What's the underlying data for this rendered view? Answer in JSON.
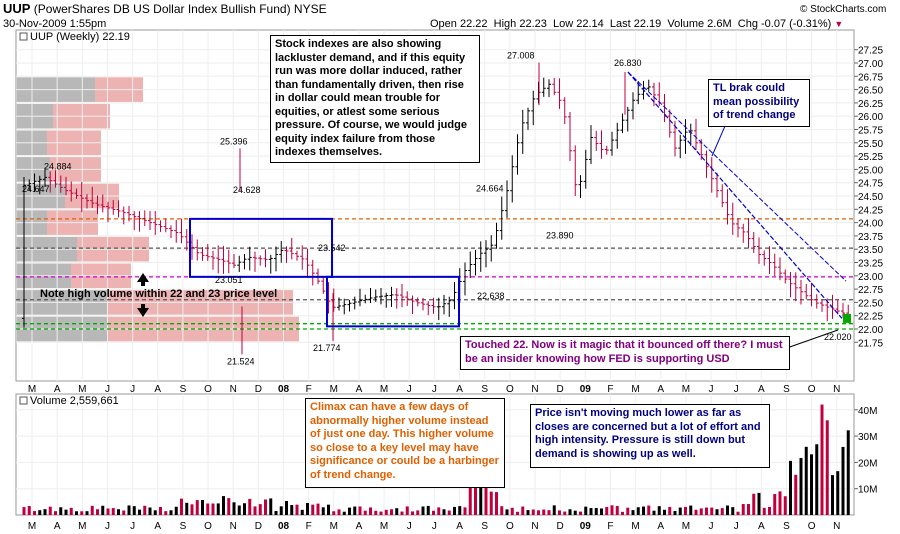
{
  "header": {
    "symbol": "UUP",
    "name": "(PowerShares DB US Dollar Index Bullish Fund)",
    "exchange": "NYSE",
    "date": "30-Nov-2009 1:55pm",
    "open_label": "Open",
    "open": "22.22",
    "high_label": "High",
    "high": "22.23",
    "low_label": "Low",
    "low": "22.14",
    "last_label": "Last",
    "last": "22.19",
    "volume_label": "Volume",
    "volume": "2.6M",
    "chg_label": "Chg",
    "chg": "-0.07 (-0.31%)",
    "chg_icon": "down-triangle-icon",
    "copyright": "© StockCharts.com",
    "colors": {
      "down": "#c0003c",
      "up": "#000000",
      "neg_chg": "#cc0000"
    }
  },
  "price_panel": {
    "legend": "UUP (Weekly) 22.19",
    "legend_icon": "checkbox-icon"
  },
  "volume_panel": {
    "legend": "Volume 2,559,661",
    "legend_icon": "checkbox-icon",
    "y_ticks": [
      "10M",
      "20M",
      "30M",
      "40M"
    ]
  },
  "annotations": {
    "stock_indexes": "Stock indexes are also showing lackluster demand, and if this equity run was more dollar induced, rather than fundamentally driven, then rise in dollar could mean trouble for equities, or atlest some serious pressure.  Of course, we would judge equity index failure from those indexes themselves.",
    "tl_break": "TL brak could mean possibility of trend change",
    "high_volume": "Note high volume within 22 and 23 price level",
    "touched": "Touched 22.  Now is it magic that it bounced off there?  I must be an insider knowing how FED is supporting USD",
    "climax": "Climax can have a few days of abnormally higher volume instead of just one day.  This higher volume so close to a key level may have significance or could be a harbinger of trend change.",
    "price_not_moving": "Price isn't moving much lower as far as closes are concerned but a lot of effort and high intensity.  Pressure is still down but demand is showing up as well.",
    "colors": {
      "text_black": "#000000",
      "text_orange": "#e06000",
      "text_purple": "#800080",
      "text_navy": "#000080",
      "box_blue": "#0000cc",
      "circle": "#1a1a8c"
    }
  },
  "chart_data": [
    {
      "type": "candlestick",
      "title": "UUP (Weekly) 22.19",
      "y_ticks": [
        "21.75",
        "22.00",
        "22.25",
        "22.50",
        "22.75",
        "23.00",
        "23.25",
        "23.50",
        "23.75",
        "24.00",
        "24.25",
        "24.50",
        "24.75",
        "25.00",
        "25.25",
        "25.50",
        "25.75",
        "26.00",
        "26.25",
        "26.50",
        "26.75",
        "27.00",
        "27.25"
      ],
      "ylim": [
        21.5,
        27.3
      ],
      "x_tick_labels": [
        "M",
        "A",
        "M",
        "J",
        "J",
        "A",
        "S",
        "O",
        "N",
        "D",
        "08",
        "F",
        "M",
        "A",
        "M",
        "J",
        "J",
        "A",
        "S",
        "O",
        "N",
        "D",
        "09",
        "F",
        "M",
        "A",
        "M",
        "J",
        "J",
        "A",
        "S",
        "O",
        "N"
      ],
      "price_labels": [
        {
          "label": "24.647",
          "value": 24.647
        },
        {
          "label": "24.884",
          "value": 24.884
        },
        {
          "label": "25.396",
          "value": 25.396
        },
        {
          "label": "24.628",
          "value": 24.628
        },
        {
          "label": "23.051",
          "value": 23.051
        },
        {
          "label": "21.524",
          "value": 21.524
        },
        {
          "label": "23.542",
          "value": 23.542
        },
        {
          "label": "21.774",
          "value": 21.774
        },
        {
          "label": "24.664",
          "value": 24.664
        },
        {
          "label": "22.638",
          "value": 22.638
        },
        {
          "label": "27.008",
          "value": 27.008
        },
        {
          "label": "23.890",
          "value": 23.89
        },
        {
          "label": "26.830",
          "value": 26.83
        },
        {
          "label": "22.020",
          "value": 22.02
        }
      ],
      "horizontal_lines": [
        {
          "value": 24.07,
          "color": "#e06000",
          "style": "dashed"
        },
        {
          "value": 23.52,
          "color": "#555555",
          "style": "dashed"
        },
        {
          "value": 22.98,
          "color": "#cc00cc",
          "style": "dashed"
        },
        {
          "value": 22.55,
          "color": "#555555",
          "style": "dashed"
        },
        {
          "value": 22.1,
          "color": "#00aa00",
          "style": "dashed"
        },
        {
          "value": 22.0,
          "color": "#00aa00",
          "style": "dashed"
        }
      ],
      "trendlines_color": "#0000cc",
      "boxes_color": "#0000cc",
      "volume_by_price": {
        "rows": [
          {
            "lo": 26.25,
            "hi": 26.75,
            "up": 0.26,
            "down": 0.16
          },
          {
            "lo": 25.75,
            "hi": 26.25,
            "up": 0.12,
            "down": 0.19
          },
          {
            "lo": 25.25,
            "hi": 25.75,
            "up": 0.1,
            "down": 0.18
          },
          {
            "lo": 24.75,
            "hi": 25.25,
            "up": 0.11,
            "down": 0.17
          },
          {
            "lo": 24.25,
            "hi": 24.75,
            "up": 0.16,
            "down": 0.18
          },
          {
            "lo": 23.75,
            "hi": 24.25,
            "up": 0.1,
            "down": 0.17
          },
          {
            "lo": 23.25,
            "hi": 23.75,
            "up": 0.2,
            "down": 0.24
          },
          {
            "lo": 22.75,
            "hi": 23.25,
            "up": 0.18,
            "down": 0.2
          },
          {
            "lo": 22.25,
            "hi": 22.75,
            "up": 0.3,
            "down": 0.62
          },
          {
            "lo": 21.75,
            "hi": 22.25,
            "up": 0.3,
            "down": 0.64
          }
        ],
        "up_color": "#a0a0a0",
        "down_color": "#e8a0a0"
      }
    },
    {
      "type": "bar",
      "title": "Volume 2,559,661",
      "y_ticks": [
        "10M",
        "20M",
        "30M",
        "40M"
      ],
      "ylim": [
        0,
        45
      ],
      "unit": "M",
      "up_color": "#000000",
      "down_color": "#c0003c"
    }
  ]
}
